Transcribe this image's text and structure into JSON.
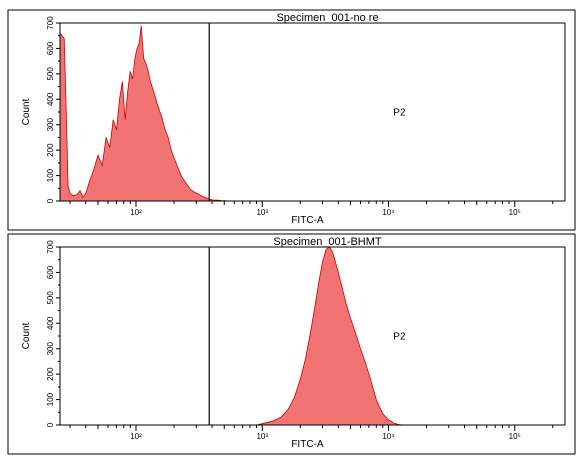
{
  "chart_data": [
    {
      "type": "area",
      "title": "Specimen_001-no re",
      "xlabel": "FITC-A",
      "ylabel": "Count",
      "xscale": "log",
      "xlim": [
        25,
        250000
      ],
      "ylim": [
        0,
        700
      ],
      "yticks": [
        0,
        100,
        200,
        300,
        400,
        500,
        600,
        700
      ],
      "xticks": [
        {
          "value": 100,
          "label": "10²"
        },
        {
          "value": 1000,
          "label": "10³"
        },
        {
          "value": 10000,
          "label": "10⁴"
        },
        {
          "value": 100000,
          "label": "10⁵"
        }
      ],
      "gate": {
        "name": "P2",
        "min": 380
      },
      "color": "#f05a5a",
      "x": [
        25,
        26,
        27,
        28,
        29,
        30,
        32,
        34,
        36,
        38,
        40,
        43,
        46,
        50,
        54,
        58,
        62,
        66,
        70,
        74,
        78,
        82,
        86,
        90,
        94,
        98,
        102,
        106,
        110,
        115,
        120,
        125,
        130,
        140,
        150,
        160,
        170,
        180,
        190,
        200,
        215,
        230,
        250,
        270,
        290,
        310,
        330,
        350,
        370,
        390,
        410,
        440,
        470,
        500,
        550,
        600,
        700
      ],
      "values": [
        660,
        650,
        640,
        360,
        60,
        30,
        20,
        25,
        40,
        15,
        30,
        80,
        120,
        180,
        140,
        250,
        210,
        320,
        280,
        400,
        470,
        320,
        430,
        510,
        480,
        560,
        600,
        620,
        690,
        560,
        540,
        510,
        470,
        420,
        370,
        330,
        280,
        250,
        200,
        170,
        130,
        95,
        70,
        45,
        35,
        28,
        20,
        14,
        10,
        6,
        4,
        3,
        2,
        1,
        0,
        0,
        0
      ]
    },
    {
      "type": "area",
      "title": "Specimen_001-BHMT",
      "xlabel": "FITC-A",
      "ylabel": "Count",
      "xscale": "log",
      "xlim": [
        25,
        250000
      ],
      "ylim": [
        0,
        700
      ],
      "yticks": [
        0,
        100,
        200,
        300,
        400,
        500,
        600,
        700
      ],
      "xticks": [
        {
          "value": 100,
          "label": "10²"
        },
        {
          "value": 1000,
          "label": "10³"
        },
        {
          "value": 10000,
          "label": "10⁴"
        },
        {
          "value": 100000,
          "label": "10⁵"
        }
      ],
      "gate": {
        "name": "P2",
        "min": 380
      },
      "color": "#f05a5a",
      "x": [
        900,
        1000,
        1200,
        1400,
        1600,
        1800,
        2000,
        2200,
        2400,
        2600,
        2800,
        3000,
        3200,
        3400,
        3600,
        3800,
        4000,
        4300,
        4600,
        5000,
        5500,
        6000,
        6500,
        7000,
        7500,
        8000,
        8500,
        9000,
        10000,
        11000,
        12000,
        13000
      ],
      "values": [
        0,
        5,
        15,
        30,
        60,
        110,
        180,
        260,
        360,
        460,
        560,
        640,
        690,
        700,
        680,
        640,
        600,
        540,
        480,
        420,
        360,
        300,
        250,
        200,
        150,
        100,
        70,
        45,
        20,
        8,
        2,
        0
      ]
    }
  ]
}
